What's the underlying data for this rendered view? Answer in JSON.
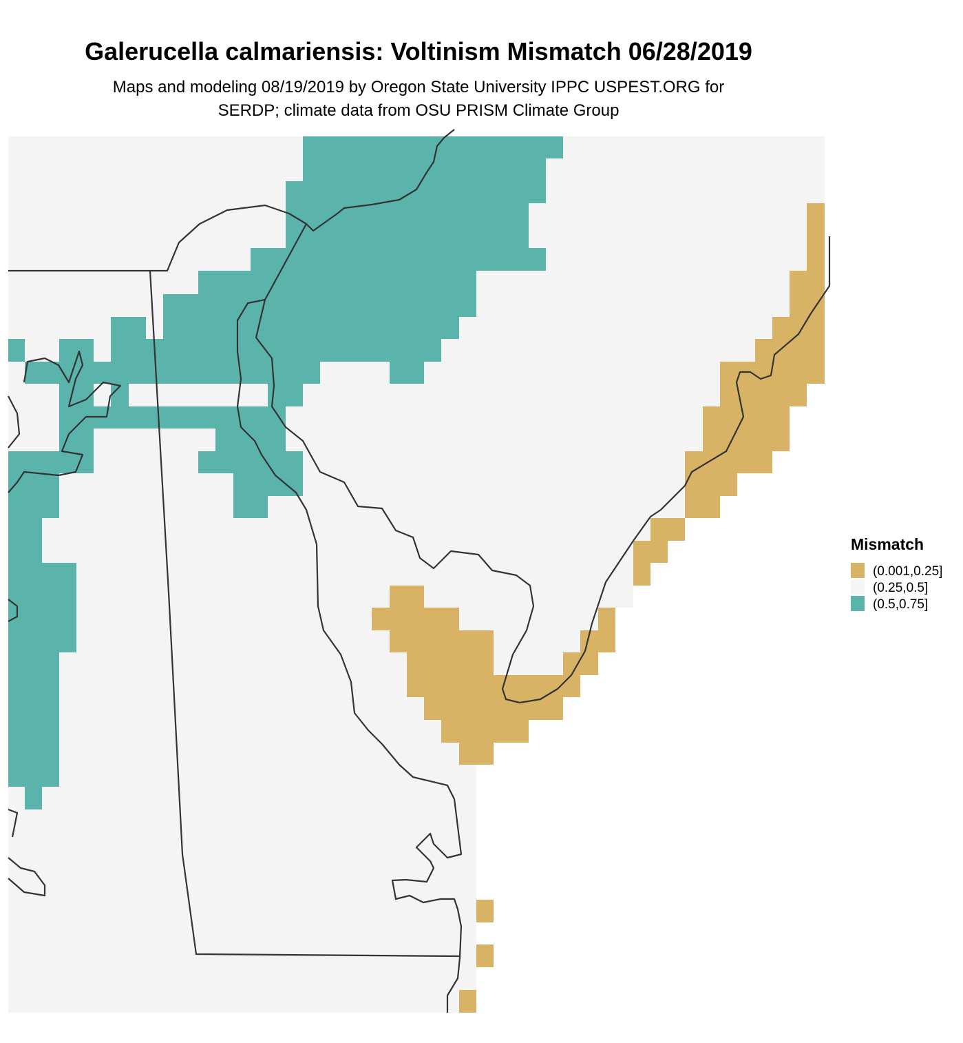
{
  "title": "Galerucella calmariensis: Voltinism Mismatch 06/28/2019",
  "subtitle": [
    "Maps and modeling 08/19/2019 by Oregon State University IPPC USPEST.ORG for",
    "SERDP; climate data from OSU PRISM Climate Group"
  ],
  "legend": {
    "title": "Mismatch",
    "items": [
      {
        "label": "(0.001,0.25]",
        "color": "#d8b365"
      },
      {
        "label": "(0.25,0.5]",
        "color": "#f5f5f5"
      },
      {
        "label": "(0.5,0.75]",
        "color": "#5ab4ac"
      }
    ]
  }
}
